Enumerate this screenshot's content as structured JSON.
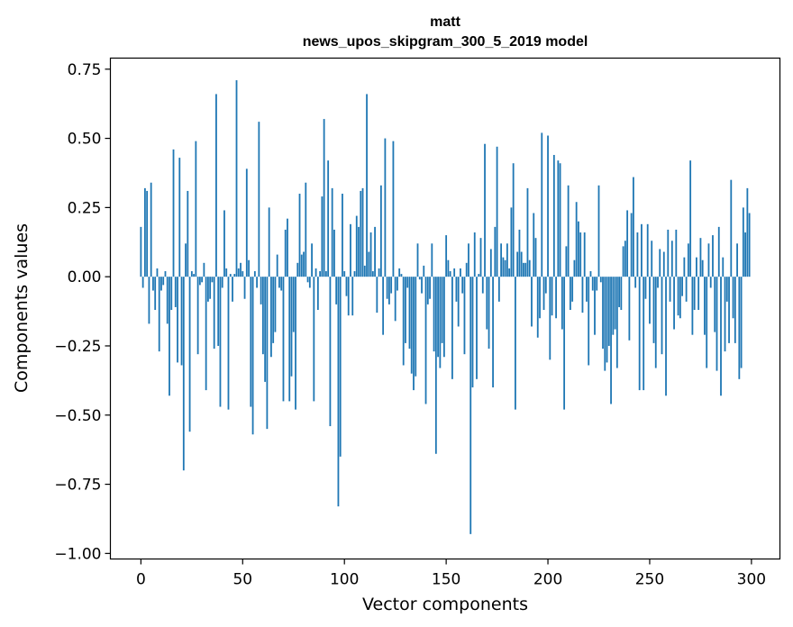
{
  "chart_data": {
    "type": "bar",
    "title": "matt",
    "subtitle": "news_upos_skipgram_300_5_2019 model",
    "xlabel": "Vector components",
    "ylabel": "Components values",
    "xlim": [
      -15,
      314
    ],
    "ylim": [
      -1.02,
      0.79
    ],
    "x_ticks": [
      0,
      50,
      100,
      150,
      200,
      250,
      300
    ],
    "y_ticks": [
      0.75,
      0.5,
      0.25,
      0.0,
      -0.25,
      -0.5,
      -0.75,
      -1.0
    ],
    "y_tick_labels": [
      "0.75",
      "0.50",
      "0.25",
      "0.00",
      "−0.25",
      "−0.50",
      "−0.75",
      "−1.00"
    ],
    "bar_color": "#1f77b4",
    "series": [
      {
        "name": "matt",
        "values": [
          0.18,
          -0.04,
          0.32,
          0.31,
          -0.17,
          0.34,
          -0.05,
          -0.12,
          0.03,
          -0.27,
          -0.05,
          -0.03,
          0.02,
          -0.17,
          -0.43,
          -0.12,
          0.46,
          -0.11,
          -0.31,
          0.43,
          -0.32,
          -0.7,
          0.12,
          0.31,
          -0.56,
          0.02,
          0.01,
          0.49,
          -0.28,
          -0.03,
          -0.02,
          0.05,
          -0.41,
          -0.09,
          -0.08,
          -0.02,
          -0.26,
          0.66,
          -0.25,
          -0.47,
          -0.04,
          0.24,
          0.03,
          -0.48,
          0.01,
          -0.09,
          0.01,
          0.71,
          0.03,
          0.05,
          0.02,
          -0.08,
          0.39,
          0.06,
          -0.47,
          -0.57,
          0.02,
          -0.04,
          0.56,
          -0.1,
          -0.28,
          -0.38,
          -0.55,
          0.25,
          -0.29,
          -0.24,
          -0.2,
          0.08,
          -0.04,
          -0.05,
          -0.45,
          0.17,
          0.21,
          -0.45,
          -0.36,
          -0.2,
          -0.48,
          0.05,
          0.3,
          0.08,
          0.09,
          0.34,
          -0.02,
          -0.04,
          0.12,
          -0.45,
          0.03,
          -0.12,
          0.02,
          0.29,
          0.57,
          0.02,
          0.42,
          -0.54,
          0.32,
          0.17,
          -0.1,
          -0.83,
          -0.65,
          0.3,
          0.02,
          -0.07,
          -0.14,
          0.19,
          -0.14,
          0.02,
          0.22,
          0.18,
          0.31,
          0.32,
          0.04,
          0.66,
          0.09,
          0.16,
          0.02,
          0.18,
          -0.13,
          0.03,
          0.33,
          -0.21,
          0.5,
          -0.08,
          -0.1,
          -0.06,
          0.49,
          -0.16,
          -0.05,
          0.03,
          0.01,
          -0.32,
          -0.24,
          -0.04,
          -0.26,
          -0.35,
          -0.41,
          -0.36,
          0.12,
          -0.01,
          -0.06,
          0.04,
          -0.46,
          -0.1,
          -0.08,
          0.12,
          -0.27,
          -0.64,
          -0.29,
          -0.33,
          -0.24,
          -0.29,
          0.15,
          0.06,
          0.02,
          -0.37,
          0.03,
          -0.09,
          -0.18,
          0.03,
          -0.06,
          -0.28,
          0.05,
          0.12,
          -0.93,
          -0.4,
          0.16,
          -0.37,
          0.01,
          0.14,
          -0.06,
          0.48,
          -0.19,
          -0.26,
          0.1,
          -0.4,
          0.18,
          0.47,
          -0.09,
          0.12,
          0.07,
          0.06,
          0.12,
          0.03,
          0.25,
          0.41,
          -0.48,
          0.09,
          0.17,
          0.09,
          0.05,
          0.05,
          0.32,
          0.06,
          -0.18,
          0.23,
          0.14,
          -0.22,
          -0.15,
          0.52,
          -0.12,
          -0.06,
          0.51,
          -0.3,
          -0.14,
          0.44,
          -0.15,
          0.42,
          0.41,
          -0.19,
          -0.48,
          0.11,
          0.33,
          -0.12,
          -0.09,
          0.06,
          0.27,
          0.2,
          0.16,
          -0.13,
          0.16,
          -0.09,
          -0.32,
          0.02,
          -0.05,
          -0.21,
          -0.05,
          0.33,
          -0.02,
          -0.26,
          -0.34,
          -0.31,
          -0.25,
          -0.46,
          -0.21,
          -0.19,
          -0.33,
          -0.11,
          -0.12,
          0.11,
          0.13,
          0.24,
          -0.23,
          0.23,
          0.36,
          -0.04,
          0.16,
          -0.41,
          0.19,
          -0.41,
          -0.08,
          0.19,
          -0.17,
          0.13,
          -0.24,
          -0.33,
          -0.04,
          0.1,
          -0.28,
          0.09,
          -0.43,
          0.17,
          -0.09,
          0.13,
          -0.19,
          0.17,
          -0.14,
          -0.15,
          -0.07,
          0.07,
          -0.09,
          0.12,
          0.42,
          -0.21,
          -0.12,
          0.07,
          -0.12,
          0.14,
          0.06,
          -0.21,
          -0.33,
          0.12,
          -0.04,
          0.15,
          -0.2,
          -0.34,
          0.18,
          -0.43,
          0.07,
          -0.27,
          -0.09,
          -0.24,
          0.35,
          -0.15,
          -0.24,
          0.12,
          -0.37,
          -0.33,
          0.25,
          0.16,
          0.32,
          0.23
        ]
      }
    ]
  }
}
